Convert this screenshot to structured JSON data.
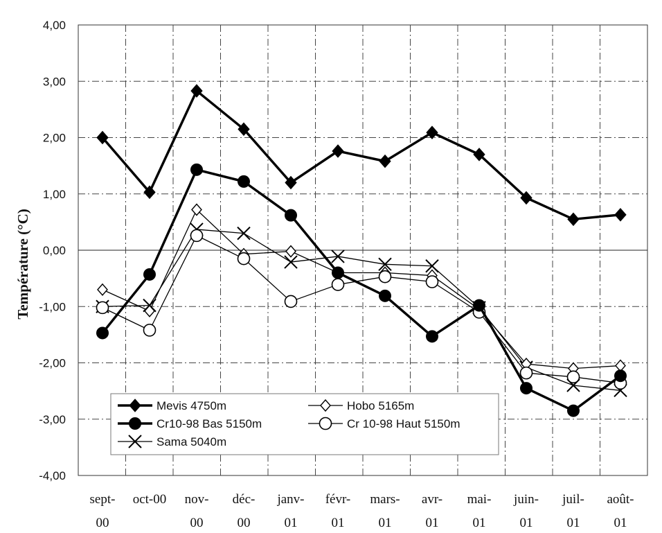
{
  "chart_data": {
    "type": "line",
    "xlabel": "",
    "ylabel": "Température (°C)",
    "ylim": [
      -4,
      4
    ],
    "yticks": [
      "-4,00",
      "-3,00",
      "-2,00",
      "-1,00",
      "0,00",
      "1,00",
      "2,00",
      "3,00",
      "4,00"
    ],
    "grid": true,
    "legend_position": "bottom-left",
    "categories": [
      [
        "sept-",
        "00"
      ],
      [
        "oct-00",
        ""
      ],
      [
        "nov-",
        "00"
      ],
      [
        "déc-",
        "00"
      ],
      [
        "janv-",
        "01"
      ],
      [
        "févr-",
        "01"
      ],
      [
        "mars-",
        "01"
      ],
      [
        "avr-",
        "01"
      ],
      [
        "mai-",
        "01"
      ],
      [
        "juin-",
        "01"
      ],
      [
        "juil-",
        "01"
      ],
      [
        "août-",
        "01"
      ]
    ],
    "series": [
      {
        "name": "Mevis 4750m",
        "marker": "diamond-filled",
        "weight": "bold",
        "values": [
          2.0,
          1.03,
          2.83,
          2.15,
          1.2,
          1.76,
          1.58,
          2.09,
          1.7,
          0.93,
          0.55,
          0.63
        ]
      },
      {
        "name": "Hobo 5165m",
        "marker": "diamond-open",
        "weight": "thin",
        "values": [
          -0.7,
          -1.08,
          0.72,
          -0.07,
          -0.02,
          -0.4,
          -0.4,
          -0.45,
          -1.05,
          -2.02,
          -2.1,
          -2.05
        ]
      },
      {
        "name": "Cr10-98 Bas 5150m",
        "marker": "circle-filled",
        "weight": "bold",
        "values": [
          -1.47,
          -0.43,
          1.43,
          1.22,
          0.62,
          -0.4,
          -0.81,
          -1.53,
          -0.98,
          -2.45,
          -2.85,
          -2.23
        ]
      },
      {
        "name": "Cr 10-98 Haut 5150m",
        "marker": "circle-open",
        "weight": "thin",
        "values": [
          -1.02,
          -1.42,
          0.26,
          -0.15,
          -0.91,
          -0.61,
          -0.47,
          -0.56,
          -1.1,
          -2.18,
          -2.25,
          -2.36
        ]
      },
      {
        "name": "Sama 5040m",
        "marker": "x",
        "weight": "thin",
        "values": [
          -1.0,
          -0.98,
          0.37,
          0.3,
          -0.21,
          -0.11,
          -0.25,
          -0.28,
          -1.02,
          -2.08,
          -2.4,
          -2.49
        ]
      }
    ]
  }
}
